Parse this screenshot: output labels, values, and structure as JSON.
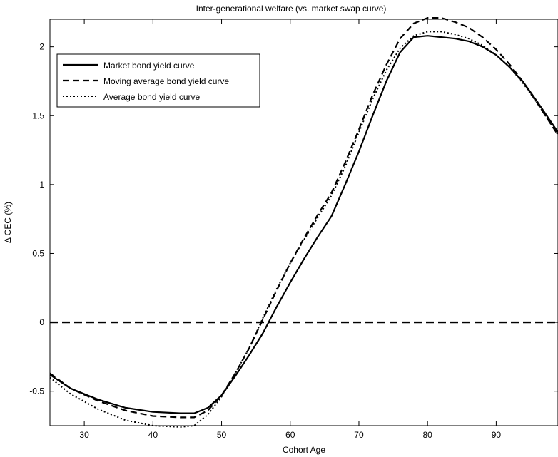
{
  "chart_data": {
    "type": "line",
    "title": "Inter-generational welfare (vs. market swap curve)",
    "xlabel": "Cohort Age",
    "ylabel": "Δ CEC (%)",
    "xlim": [
      25,
      99
    ],
    "ylim": [
      -0.75,
      2.2
    ],
    "x_ticks": [
      30,
      40,
      50,
      60,
      70,
      80,
      90
    ],
    "y_ticks": [
      -0.5,
      0,
      0.5,
      1,
      1.5,
      2
    ],
    "y_tick_labels": [
      "-0.5",
      "0",
      "0.5",
      "1",
      "1.5",
      "2"
    ],
    "legend_position": "top-left",
    "grid": false,
    "series": [
      {
        "name": "Market bond yield curve",
        "style": "solid",
        "x": [
          25,
          28,
          32,
          36,
          40,
          44,
          46,
          48,
          50,
          52,
          54,
          56,
          58,
          60,
          62,
          64,
          66,
          68,
          70,
          72,
          74,
          76,
          78,
          80,
          82,
          84,
          86,
          88,
          90,
          92,
          94,
          96,
          99
        ],
        "y": [
          -0.38,
          -0.48,
          -0.56,
          -0.62,
          -0.65,
          -0.66,
          -0.66,
          -0.62,
          -0.53,
          -0.39,
          -0.24,
          -0.08,
          0.11,
          0.29,
          0.46,
          0.62,
          0.77,
          1.0,
          1.24,
          1.5,
          1.75,
          1.96,
          2.07,
          2.08,
          2.07,
          2.06,
          2.04,
          2.0,
          1.94,
          1.85,
          1.74,
          1.6,
          1.38
        ]
      },
      {
        "name": "Moving average bond yield curve",
        "style": "dashed",
        "x": [
          25,
          28,
          32,
          36,
          40,
          44,
          46,
          48,
          50,
          52,
          54,
          56,
          58,
          60,
          62,
          64,
          66,
          68,
          70,
          72,
          74,
          76,
          78,
          80,
          82,
          84,
          86,
          88,
          90,
          92,
          94,
          96,
          99
        ],
        "y": [
          -0.37,
          -0.48,
          -0.57,
          -0.64,
          -0.68,
          -0.69,
          -0.69,
          -0.64,
          -0.53,
          -0.37,
          -0.19,
          0.02,
          0.23,
          0.43,
          0.61,
          0.78,
          0.94,
          1.16,
          1.4,
          1.65,
          1.87,
          2.06,
          2.17,
          2.21,
          2.21,
          2.18,
          2.14,
          2.07,
          1.98,
          1.87,
          1.74,
          1.59,
          1.36
        ]
      },
      {
        "name": "Average bond yield curve",
        "style": "dotted",
        "x": [
          25,
          28,
          32,
          36,
          40,
          44,
          46,
          48,
          50,
          52,
          54,
          56,
          58,
          60,
          62,
          64,
          66,
          68,
          70,
          72,
          74,
          76,
          78,
          80,
          82,
          84,
          86,
          88,
          90,
          92,
          94,
          96,
          99
        ],
        "y": [
          -0.4,
          -0.52,
          -0.63,
          -0.71,
          -0.75,
          -0.76,
          -0.75,
          -0.67,
          -0.54,
          -0.37,
          -0.19,
          0.03,
          0.24,
          0.43,
          0.6,
          0.76,
          0.92,
          1.13,
          1.38,
          1.62,
          1.83,
          1.99,
          2.08,
          2.11,
          2.11,
          2.09,
          2.06,
          2.01,
          1.94,
          1.85,
          1.73,
          1.59,
          1.36
        ]
      },
      {
        "name": "",
        "style": "dashed-reference",
        "x": [
          25,
          99
        ],
        "y": [
          0,
          0
        ]
      }
    ]
  }
}
